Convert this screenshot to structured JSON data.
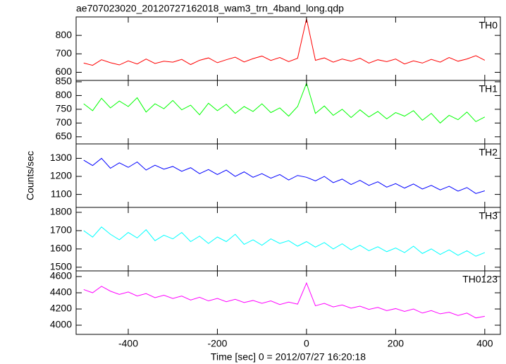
{
  "chart_data": [
    {
      "type": "line",
      "title": "ae707023020_20120727162018_wam3_trn_4band_long.qdp",
      "label": "TH0",
      "color": "#ff0000",
      "x": [
        -500,
        -480,
        -460,
        -440,
        -420,
        -400,
        -380,
        -360,
        -340,
        -320,
        -300,
        -280,
        -260,
        -240,
        -220,
        -200,
        -180,
        -160,
        -140,
        -120,
        -100,
        -80,
        -60,
        -40,
        -20,
        0,
        20,
        40,
        60,
        80,
        100,
        120,
        140,
        160,
        180,
        200,
        220,
        240,
        260,
        280,
        300,
        320,
        340,
        360,
        380,
        400
      ],
      "values": [
        650,
        638,
        668,
        652,
        640,
        662,
        645,
        672,
        648,
        660,
        655,
        670,
        642,
        665,
        678,
        652,
        668,
        682,
        656,
        674,
        688,
        664,
        680,
        658,
        676,
        890,
        665,
        678,
        655,
        672,
        660,
        676,
        650,
        668,
        658,
        672,
        645,
        662,
        650,
        670,
        655,
        680,
        660,
        672,
        690,
        665
      ],
      "xlim": [
        -517,
        435
      ],
      "ylim": [
        556,
        900
      ],
      "yticks": [
        600,
        700,
        800
      ]
    },
    {
      "type": "line",
      "label": "TH1",
      "color": "#00ff00",
      "x": [
        -500,
        -480,
        -460,
        -440,
        -420,
        -400,
        -380,
        -360,
        -340,
        -320,
        -300,
        -280,
        -260,
        -240,
        -220,
        -200,
        -180,
        -160,
        -140,
        -120,
        -100,
        -80,
        -60,
        -40,
        -20,
        0,
        20,
        40,
        60,
        80,
        100,
        120,
        140,
        160,
        180,
        200,
        220,
        240,
        260,
        280,
        300,
        320,
        340,
        360,
        380,
        400
      ],
      "values": [
        770,
        745,
        790,
        755,
        780,
        760,
        792,
        740,
        770,
        752,
        782,
        748,
        765,
        730,
        772,
        745,
        768,
        735,
        760,
        742,
        770,
        738,
        755,
        725,
        760,
        845,
        735,
        762,
        728,
        750,
        720,
        748,
        722,
        742,
        715,
        738,
        725,
        745,
        710,
        735,
        700,
        728,
        712,
        740,
        705,
        722
      ],
      "xlim": [
        -517,
        435
      ],
      "ylim": [
        624,
        855
      ],
      "yticks": [
        650,
        700,
        750,
        800,
        850
      ]
    },
    {
      "type": "line",
      "label": "TH2",
      "color": "#0000ff",
      "ylabel": "Counts/sec",
      "x": [
        -500,
        -480,
        -460,
        -440,
        -420,
        -400,
        -380,
        -360,
        -340,
        -320,
        -300,
        -280,
        -260,
        -240,
        -220,
        -200,
        -180,
        -160,
        -140,
        -120,
        -100,
        -80,
        -60,
        -40,
        -20,
        0,
        20,
        40,
        60,
        80,
        100,
        120,
        140,
        160,
        180,
        200,
        220,
        240,
        260,
        280,
        300,
        320,
        340,
        360,
        380,
        400
      ],
      "values": [
        1290,
        1260,
        1300,
        1245,
        1275,
        1250,
        1280,
        1235,
        1262,
        1240,
        1255,
        1228,
        1248,
        1215,
        1238,
        1210,
        1235,
        1200,
        1225,
        1195,
        1215,
        1190,
        1210,
        1180,
        1205,
        1195,
        1175,
        1200,
        1165,
        1185,
        1155,
        1178,
        1150,
        1170,
        1140,
        1160,
        1135,
        1158,
        1130,
        1150,
        1125,
        1145,
        1118,
        1138,
        1105,
        1120
      ],
      "xlim": [
        -517,
        435
      ],
      "ylim": [
        1028,
        1380
      ],
      "yticks": [
        1100,
        1200,
        1300
      ]
    },
    {
      "type": "line",
      "label": "TH3",
      "color": "#00ffff",
      "x": [
        -500,
        -480,
        -460,
        -440,
        -420,
        -400,
        -380,
        -360,
        -340,
        -320,
        -300,
        -280,
        -260,
        -240,
        -220,
        -200,
        -180,
        -160,
        -140,
        -120,
        -100,
        -80,
        -60,
        -40,
        -20,
        0,
        20,
        40,
        60,
        80,
        100,
        120,
        140,
        160,
        180,
        200,
        220,
        240,
        260,
        280,
        300,
        320,
        340,
        360,
        380,
        400
      ],
      "values": [
        1700,
        1665,
        1720,
        1680,
        1650,
        1690,
        1660,
        1705,
        1645,
        1675,
        1655,
        1690,
        1640,
        1670,
        1630,
        1665,
        1640,
        1680,
        1625,
        1650,
        1620,
        1655,
        1630,
        1645,
        1615,
        1640,
        1610,
        1635,
        1600,
        1628,
        1595,
        1620,
        1590,
        1612,
        1585,
        1605,
        1580,
        1615,
        1575,
        1600,
        1570,
        1595,
        1565,
        1590,
        1560,
        1580
      ],
      "xlim": [
        -517,
        435
      ],
      "ylim": [
        1480,
        1827
      ],
      "yticks": [
        1500,
        1600,
        1700,
        1800
      ]
    },
    {
      "type": "line",
      "label": "TH0123",
      "color": "#ff00ff",
      "xlabel": "Time [sec] 0 = 2012/07/27 16:20:18",
      "x": [
        -500,
        -480,
        -460,
        -440,
        -420,
        -400,
        -380,
        -360,
        -340,
        -320,
        -300,
        -280,
        -260,
        -240,
        -220,
        -200,
        -180,
        -160,
        -140,
        -120,
        -100,
        -80,
        -60,
        -40,
        -20,
        0,
        20,
        40,
        60,
        80,
        100,
        120,
        140,
        160,
        180,
        200,
        220,
        240,
        260,
        280,
        300,
        320,
        340,
        360,
        380,
        400
      ],
      "values": [
        4440,
        4400,
        4480,
        4420,
        4380,
        4410,
        4360,
        4390,
        4340,
        4370,
        4330,
        4360,
        4310,
        4345,
        4300,
        4330,
        4290,
        4320,
        4280,
        4305,
        4270,
        4300,
        4255,
        4285,
        4260,
        4520,
        4240,
        4270,
        4225,
        4250,
        4210,
        4235,
        4195,
        4220,
        4180,
        4205,
        4170,
        4200,
        4150,
        4180,
        4140,
        4160,
        4120,
        4150,
        4090,
        4110
      ],
      "xlim": [
        -517,
        435
      ],
      "ylim": [
        3887,
        4670
      ],
      "yticks": [
        4000,
        4200,
        4400,
        4600
      ],
      "xticks": [
        -400,
        -200,
        0,
        200,
        400
      ]
    }
  ]
}
